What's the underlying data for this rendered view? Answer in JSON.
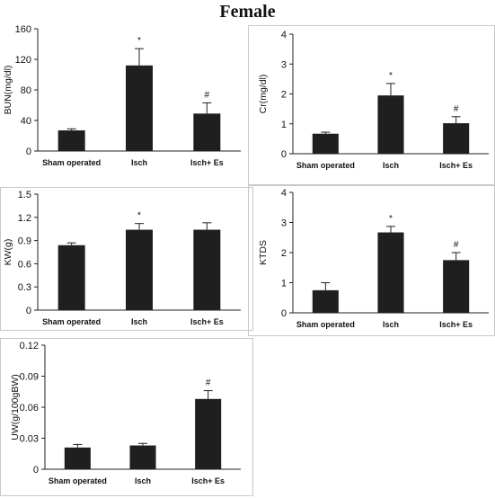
{
  "page": {
    "title": "Female"
  },
  "colors": {
    "bar": "#1f1f1f",
    "axis": "#222222",
    "frame": "#c8c8c8"
  },
  "chart_data": [
    {
      "type": "bar",
      "ylabel": "BUN(mg/dl)",
      "categories": [
        "Sham operated",
        "Isch",
        "Isch+ Es"
      ],
      "values": [
        27,
        112,
        49
      ],
      "errors": [
        2,
        22,
        14
      ],
      "markers": [
        "",
        "*",
        "#"
      ],
      "ylim": [
        0,
        160
      ],
      "yticks": [
        "0",
        "40",
        "80",
        "120",
        "160"
      ]
    },
    {
      "type": "bar",
      "ylabel": "Cr(mg/dl)",
      "categories": [
        "Sham operated",
        "Isch",
        "Isch+ Es"
      ],
      "values": [
        0.67,
        1.95,
        1.02
      ],
      "errors": [
        0.05,
        0.4,
        0.22
      ],
      "markers": [
        "",
        "*",
        "#"
      ],
      "ylim": [
        0,
        4
      ],
      "yticks": [
        "0",
        "1",
        "2",
        "3",
        "4"
      ]
    },
    {
      "type": "bar",
      "ylabel": "KW(g)",
      "categories": [
        "Sham operated",
        "Isch",
        "Isch+ Es"
      ],
      "values": [
        0.84,
        1.04,
        1.04
      ],
      "errors": [
        0.03,
        0.08,
        0.09
      ],
      "markers": [
        "",
        "*",
        ""
      ],
      "ylim": [
        0,
        1.5
      ],
      "yticks": [
        "0",
        "0.3",
        "0.6",
        "0.9",
        "1.2",
        "1.5"
      ]
    },
    {
      "type": "bar",
      "ylabel": "KTDS",
      "categories": [
        "Sham operated",
        "Isch",
        "Isch+ Es"
      ],
      "values": [
        0.75,
        2.67,
        1.75
      ],
      "errors": [
        0.25,
        0.2,
        0.25
      ],
      "markers": [
        "",
        "*",
        "#"
      ],
      "ylim": [
        0,
        4
      ],
      "yticks": [
        "0",
        "1",
        "2",
        "3",
        "4"
      ]
    },
    {
      "type": "bar",
      "ylabel": "UW(g/100gBW)",
      "categories": [
        "Sham operated",
        "Isch",
        "Isch+ Es"
      ],
      "values": [
        0.021,
        0.023,
        0.068
      ],
      "errors": [
        0.003,
        0.002,
        0.008
      ],
      "markers": [
        "",
        "",
        "#"
      ],
      "ylim": [
        0,
        0.12
      ],
      "yticks": [
        "0",
        "0.03",
        "0.06",
        "0.09",
        "0.12"
      ]
    }
  ]
}
